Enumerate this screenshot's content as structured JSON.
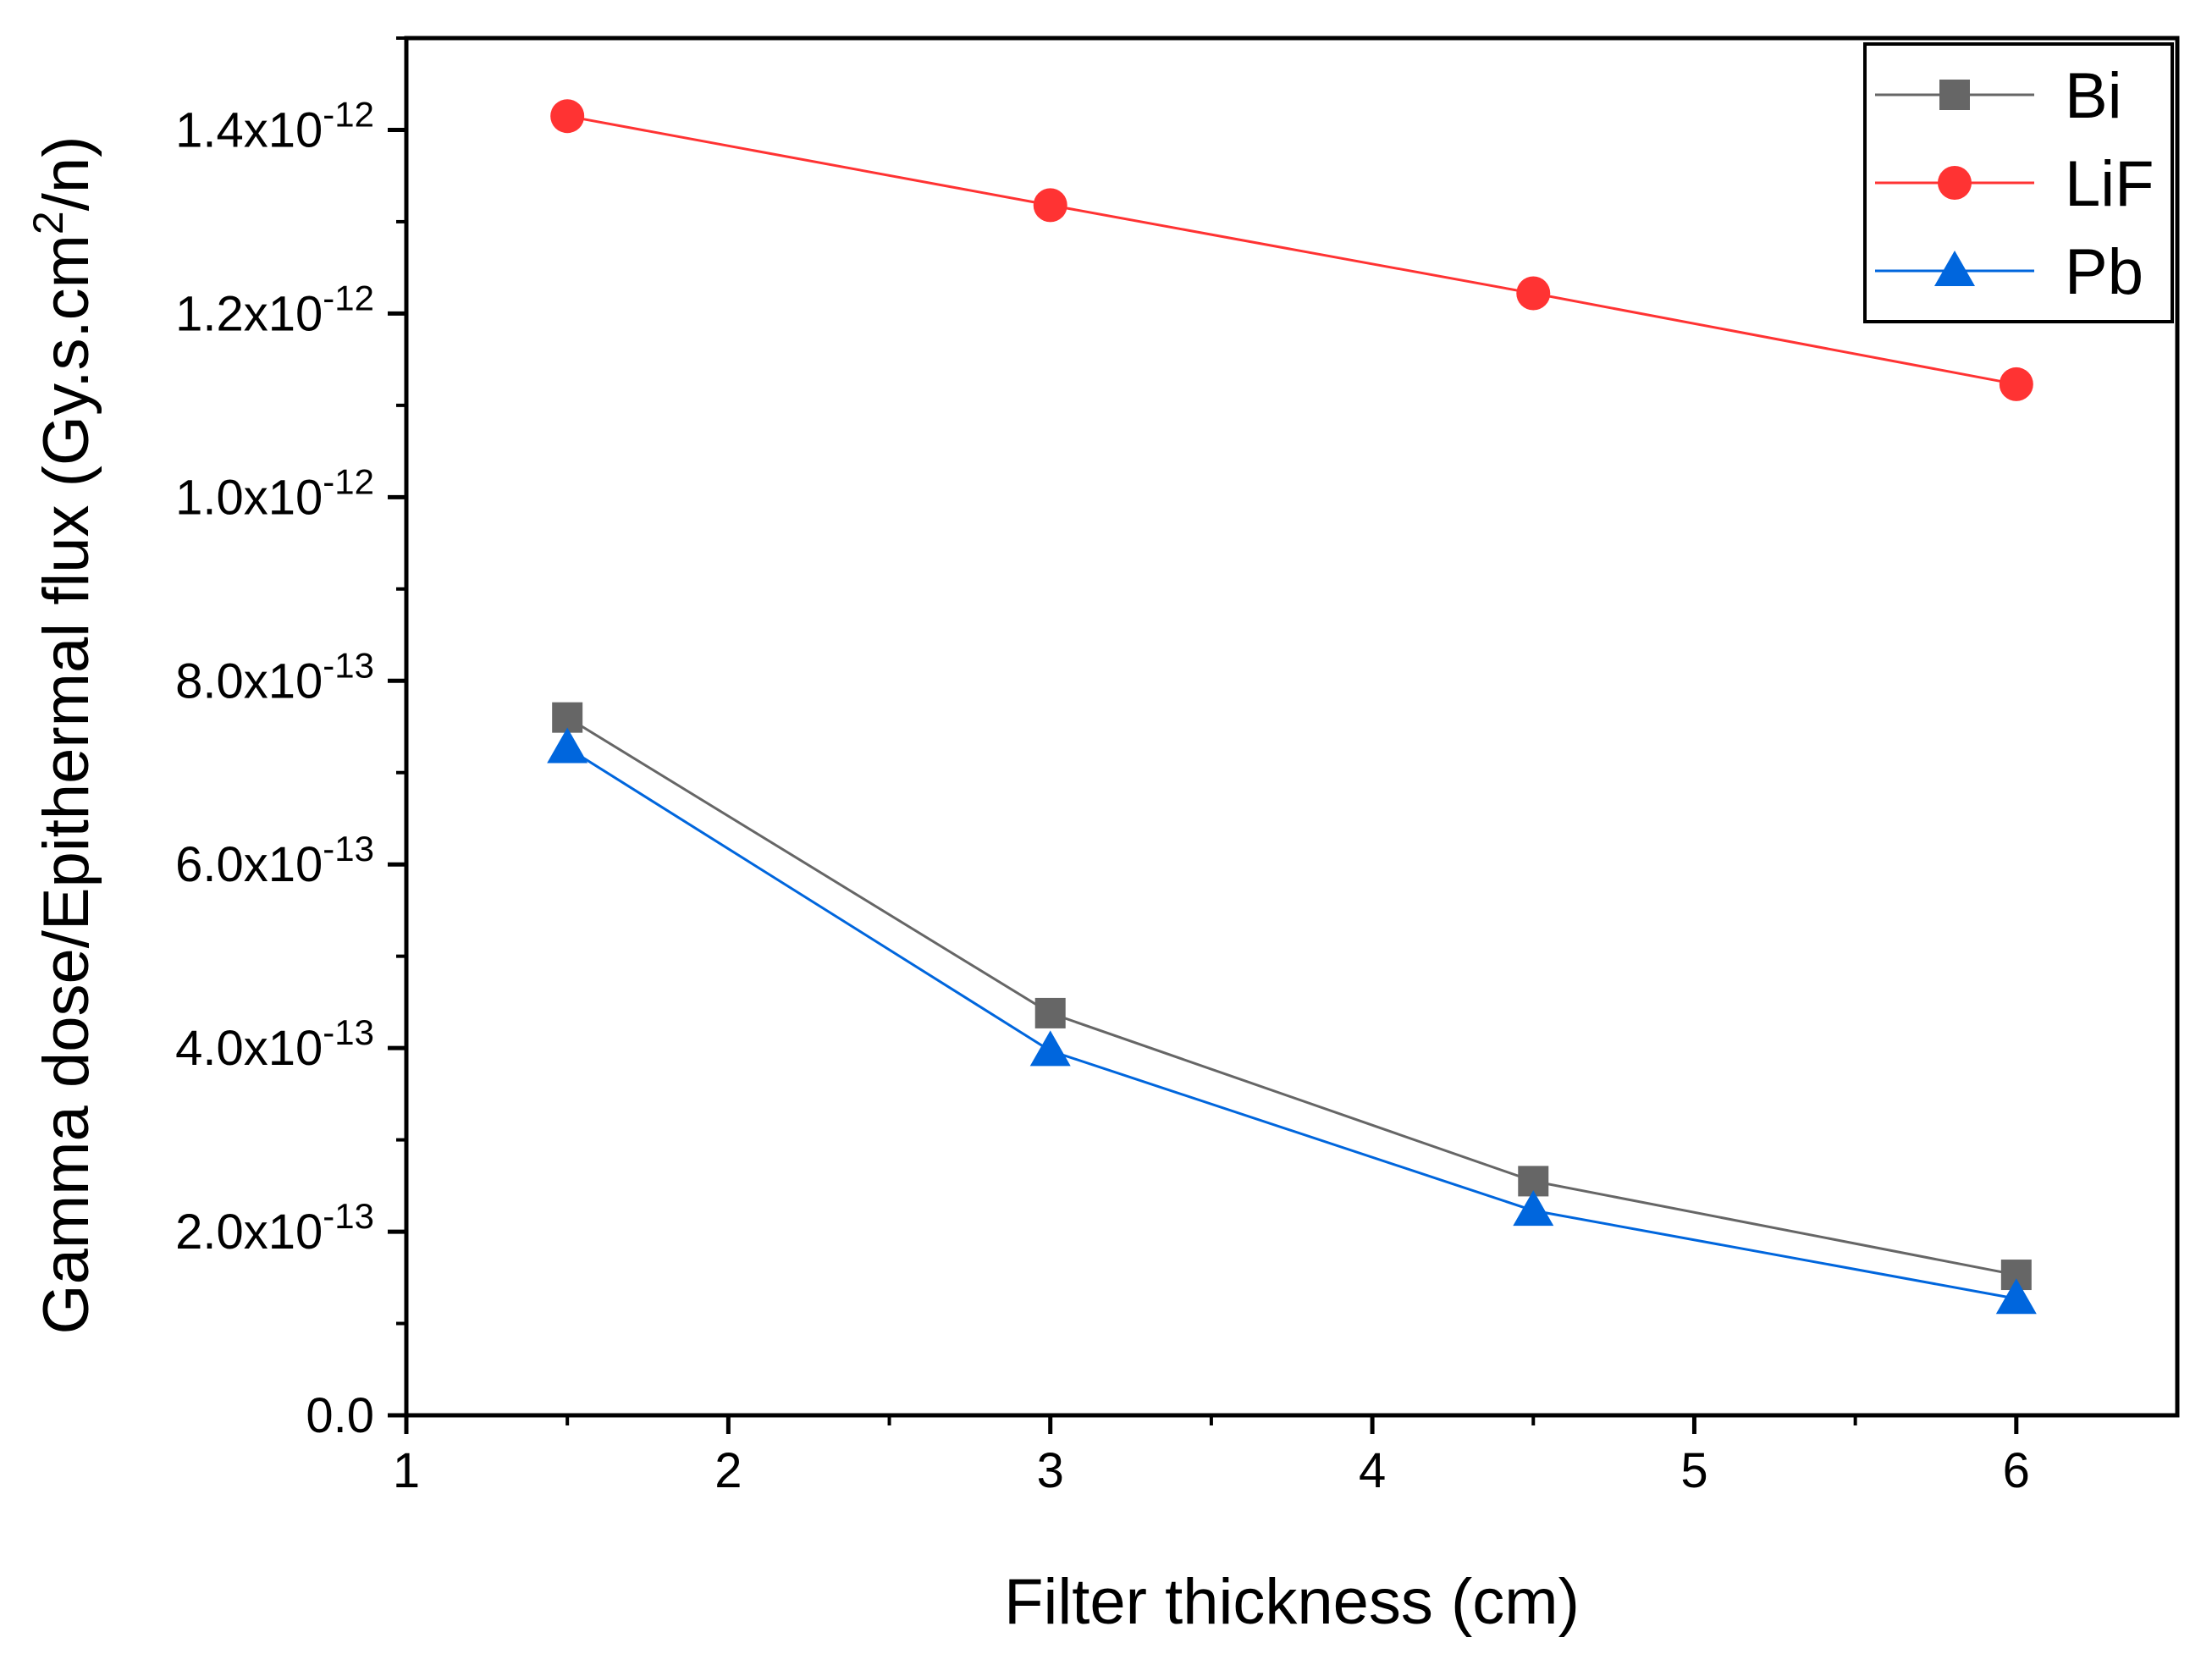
{
  "chart_data": {
    "type": "line",
    "title": "",
    "xlabel": "Filter thickness (cm)",
    "ylabel": "Gamma dose/Epithermal flux (Gy.s.cm²/n)",
    "ylabel_parts": {
      "main": "Gamma dose/Epithermal flux (Gy.s.cm",
      "sup": "2",
      "tail": "/n)"
    },
    "xlim": [
      1,
      6.5
    ],
    "ylim": [
      0,
      1.5e-12
    ],
    "x_ticks": [
      1,
      2,
      3,
      4,
      5,
      6
    ],
    "x_tick_labels": [
      "1",
      "2",
      "3",
      "4",
      "5",
      "6"
    ],
    "y_ticks": [
      {
        "value": 0,
        "mantissa": "0.0",
        "exponent": ""
      },
      {
        "value": 2e-13,
        "mantissa": "2.0x10",
        "exponent": "-13"
      },
      {
        "value": 4e-13,
        "mantissa": "4.0x10",
        "exponent": "-13"
      },
      {
        "value": 6e-13,
        "mantissa": "6.0x10",
        "exponent": "-13"
      },
      {
        "value": 8e-13,
        "mantissa": "8.0x10",
        "exponent": "-13"
      },
      {
        "value": 1e-12,
        "mantissa": "1.0x10",
        "exponent": "-12"
      },
      {
        "value": 1.2e-12,
        "mantissa": "1.2x10",
        "exponent": "-12"
      },
      {
        "value": 1.4e-12,
        "mantissa": "1.4x10",
        "exponent": "-12"
      }
    ],
    "legend_position": "top-right",
    "series": [
      {
        "name": "Bi",
        "color": "#666666",
        "marker": "square",
        "x": [
          1.5,
          3,
          4.5,
          6
        ],
        "values": [
          7.6e-13,
          4.38e-13,
          2.55e-13,
          1.53e-13
        ]
      },
      {
        "name": "LiF",
        "color": "#ff3333",
        "marker": "circle",
        "x": [
          1.5,
          3,
          4.5,
          6
        ],
        "values": [
          1.415e-12,
          1.318e-12,
          1.222e-12,
          1.123e-12
        ]
      },
      {
        "name": "Pb",
        "color": "#0066dd",
        "marker": "triangle",
        "x": [
          1.5,
          3,
          4.5,
          6
        ],
        "values": [
          7.27e-13,
          3.97e-13,
          2.23e-13,
          1.27e-13
        ]
      }
    ]
  }
}
